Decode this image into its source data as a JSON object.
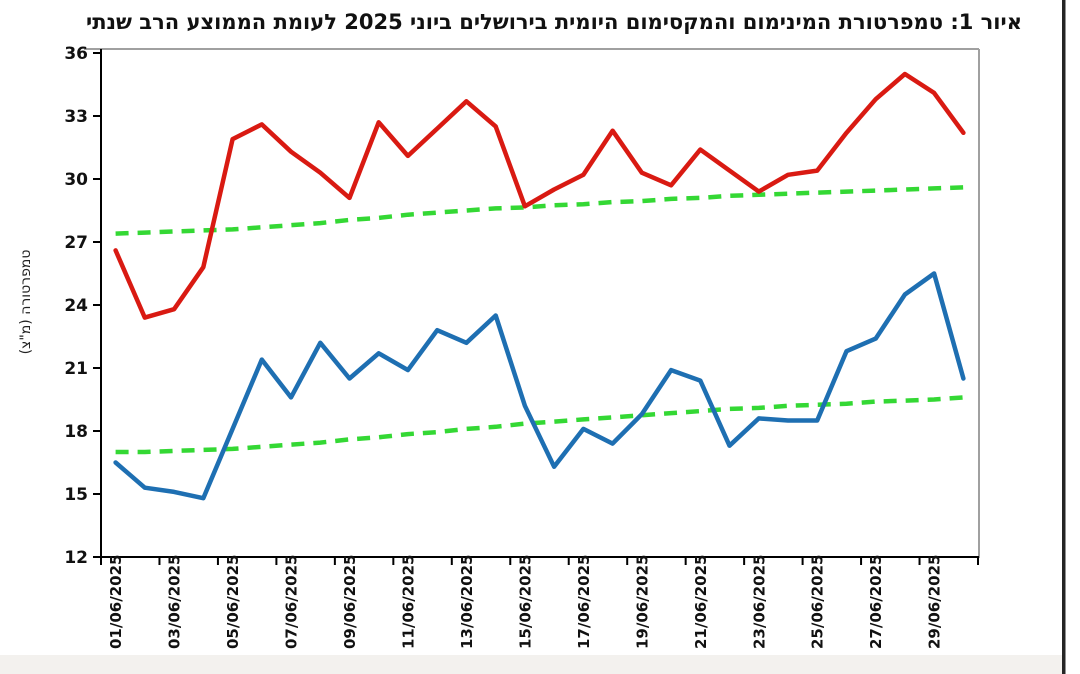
{
  "title": "איור 1: טמפרטורת המינימום והמקסימום היומית בירושלים ביוני 2025 לעומת הממוצע הרב שנתי",
  "window": {
    "background": "#ffffff",
    "bottom_band_color": "#f3f1ee",
    "right_edge_color": "#252525",
    "chart_border_color": "#a0a0a0",
    "axis_color": "#000000"
  },
  "chart_data": {
    "type": "line",
    "title": "איור 1: טמפרטורת המינימום והמקסימום היומית בירושלים ביוני 2025 לעומת הממוצע הרב שנתי",
    "xlabel": "",
    "ylabel": "טמפרטורה (מ\"צ)",
    "ylim": [
      12,
      36
    ],
    "ytick_step": 3,
    "ytick_labels": [
      "12",
      "15",
      "18",
      "21",
      "24",
      "27",
      "30",
      "33",
      "36"
    ],
    "grid": false,
    "legend_position": "none",
    "categories": [
      "01/06/2025",
      "02/06/2025",
      "03/06/2025",
      "04/06/2025",
      "05/06/2025",
      "06/06/2025",
      "07/06/2025",
      "08/06/2025",
      "09/06/2025",
      "10/06/2025",
      "11/06/2025",
      "12/06/2025",
      "13/06/2025",
      "14/06/2025",
      "15/06/2025",
      "16/06/2025",
      "17/06/2025",
      "18/06/2025",
      "19/06/2025",
      "20/06/2025",
      "21/06/2025",
      "22/06/2025",
      "23/06/2025",
      "24/06/2025",
      "25/06/2025",
      "26/06/2025",
      "27/06/2025",
      "28/06/2025",
      "29/06/2025",
      "30/06/2025"
    ],
    "x_labeled_every": 2,
    "series": [
      {
        "name": "daily-max-temp",
        "color": "#d91a12",
        "style": "solid",
        "values": [
          26.6,
          23.4,
          23.8,
          25.8,
          31.9,
          32.6,
          31.3,
          30.3,
          29.1,
          32.7,
          31.1,
          32.4,
          33.7,
          32.5,
          28.7,
          29.5,
          30.2,
          32.3,
          30.3,
          29.7,
          31.4,
          30.4,
          29.4,
          30.2,
          30.4,
          32.2,
          33.8,
          35.0,
          34.1,
          32.2
        ]
      },
      {
        "name": "daily-min-temp",
        "color": "#1e6fb2",
        "style": "solid",
        "values": [
          16.5,
          15.3,
          15.1,
          14.8,
          18.1,
          21.4,
          19.6,
          22.2,
          20.5,
          21.7,
          20.9,
          22.8,
          22.2,
          23.5,
          19.2,
          16.3,
          18.1,
          17.4,
          18.8,
          20.9,
          20.4,
          17.3,
          18.6,
          18.5,
          18.5,
          21.8,
          22.4,
          24.5,
          25.5,
          20.5
        ]
      },
      {
        "name": "longterm-avg-max",
        "color": "#34d834",
        "style": "dashed",
        "values": [
          27.4,
          27.45,
          27.5,
          27.55,
          27.6,
          27.7,
          27.8,
          27.9,
          28.05,
          28.15,
          28.3,
          28.4,
          28.5,
          28.6,
          28.65,
          28.75,
          28.8,
          28.9,
          28.95,
          29.05,
          29.1,
          29.2,
          29.25,
          29.3,
          29.35,
          29.4,
          29.45,
          29.5,
          29.55,
          29.6
        ]
      },
      {
        "name": "longterm-avg-min",
        "color": "#34d834",
        "style": "dashed",
        "values": [
          17.0,
          17.0,
          17.05,
          17.1,
          17.15,
          17.25,
          17.35,
          17.45,
          17.6,
          17.7,
          17.85,
          17.95,
          18.1,
          18.2,
          18.35,
          18.45,
          18.55,
          18.65,
          18.75,
          18.85,
          18.95,
          19.05,
          19.1,
          19.2,
          19.25,
          19.3,
          19.4,
          19.45,
          19.5,
          19.6
        ]
      }
    ]
  }
}
